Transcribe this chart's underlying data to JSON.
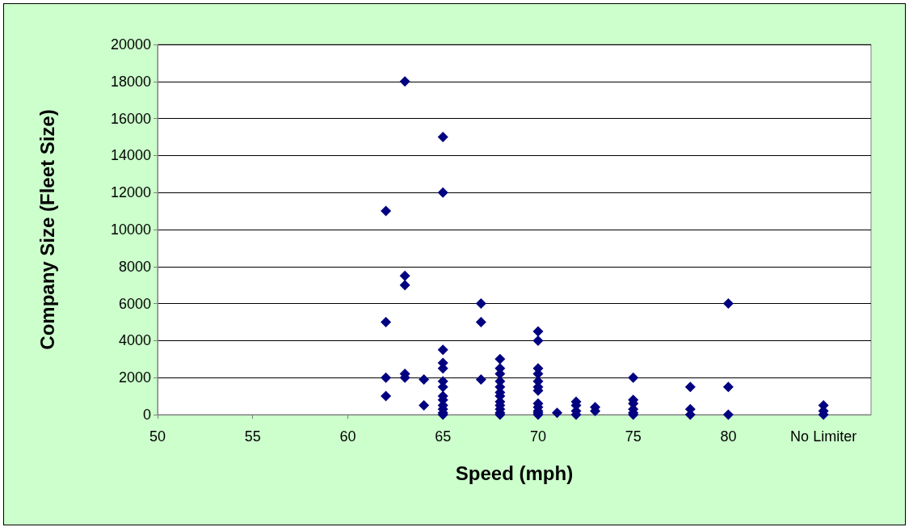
{
  "chart_data": {
    "type": "scatter",
    "xlabel": "Speed (mph)",
    "ylabel": "Company Size (Fleet Size)",
    "x": [
      62,
      62,
      62,
      62,
      63,
      63,
      63,
      63,
      63,
      64,
      64,
      65,
      65,
      65,
      65,
      65,
      65,
      65,
      65,
      65,
      65,
      65,
      65,
      65,
      67,
      67,
      67,
      68,
      68,
      68,
      68,
      68,
      68,
      68,
      68,
      68,
      68,
      68,
      68,
      70,
      70,
      70,
      70,
      70,
      70,
      70,
      70,
      70,
      70,
      70,
      70,
      71,
      72,
      72,
      72,
      72,
      73,
      73,
      75,
      75,
      75,
      75,
      75,
      75,
      78,
      78,
      78,
      80,
      80,
      80,
      85,
      85,
      85
    ],
    "series": [
      {
        "color": "#000080",
        "values": [
          11000,
          5000,
          2000,
          1000,
          18000,
          7500,
          7000,
          2200,
          2000,
          1900,
          500,
          15000,
          12000,
          3500,
          2800,
          2500,
          1800,
          1500,
          1000,
          800,
          500,
          300,
          100,
          0,
          6000,
          5000,
          1900,
          3000,
          2500,
          2200,
          1800,
          1500,
          1200,
          1000,
          700,
          500,
          300,
          100,
          0,
          4500,
          4000,
          2500,
          2200,
          1800,
          1500,
          1300,
          600,
          400,
          200,
          100,
          0,
          100,
          700,
          500,
          200,
          0,
          400,
          200,
          2000,
          800,
          600,
          300,
          100,
          0,
          1500,
          300,
          0,
          6000,
          1500,
          0,
          500,
          200,
          0
        ]
      }
    ],
    "xlim": [
      50,
      87.5
    ],
    "xticks": [
      50,
      55,
      60,
      65,
      70,
      75,
      80,
      {
        "value": 85,
        "label": "No Limiter"
      }
    ],
    "ylim": [
      0,
      20000
    ],
    "yticks": [
      0,
      2000,
      4000,
      6000,
      8000,
      10000,
      12000,
      14000,
      16000,
      18000,
      20000
    ],
    "grid": "y",
    "marker": "diamond"
  }
}
